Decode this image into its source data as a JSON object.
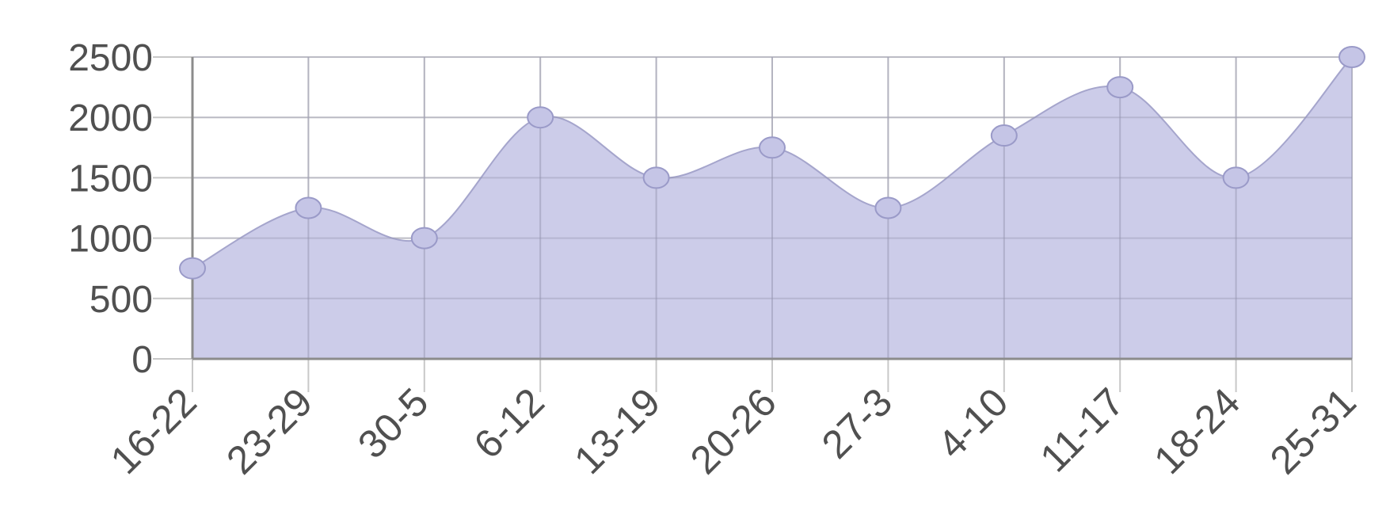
{
  "chart_data": {
    "type": "area",
    "title": "",
    "xlabel": "",
    "ylabel": "",
    "categories": [
      "16-22",
      "23-29",
      "30-5",
      "6-12",
      "13-19",
      "20-26",
      "27-3",
      "4-10",
      "11-17",
      "18-24",
      "25-31"
    ],
    "values": [
      750,
      1250,
      1000,
      2000,
      1500,
      1750,
      1250,
      1850,
      2250,
      1500,
      2500
    ],
    "ylim": [
      0,
      2500
    ],
    "y_ticks": [
      "0",
      "500",
      "1000",
      "1500",
      "2000",
      "2500"
    ],
    "grid": true,
    "smooth": true,
    "legend": "none",
    "colors": {
      "fill": "#c9c9e8",
      "stroke": "#a5a5cc",
      "point_fill": "#c5c5e6",
      "point_stroke": "#9a9ac8",
      "grid": "#d4d4d4",
      "axis": "#8c8c8c",
      "label": "#505050"
    }
  }
}
